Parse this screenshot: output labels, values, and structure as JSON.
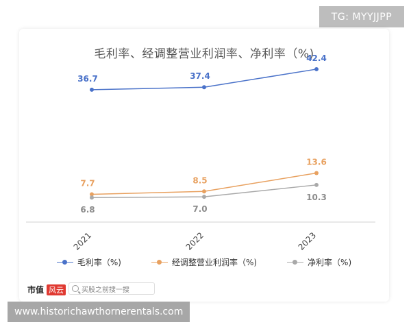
{
  "badge": "TG: MYYJJPP",
  "watermark": "www.historichawthornerentals.com",
  "footer": {
    "logo_text": "市值",
    "logo_flag": "风云",
    "search_placeholder": "买股之前搜一搜"
  },
  "chart_data": {
    "type": "line",
    "title": "毛利率、经调整营业利润率、净利率（%)",
    "categories": [
      "2021",
      "2022",
      "2023"
    ],
    "series": [
      {
        "name": "毛利率（%)",
        "values": [
          36.7,
          37.4,
          42.4
        ],
        "color": "#4a72c9"
      },
      {
        "name": "经调整营业利润率（%)",
        "values": [
          7.7,
          8.5,
          13.6
        ],
        "color": "#e8a160"
      },
      {
        "name": "净利率（%)",
        "values": [
          6.8,
          7.0,
          10.3
        ],
        "color": "#a9a9a9"
      }
    ],
    "ylim": [
      0,
      46
    ],
    "grid": false,
    "legend": "bottom"
  }
}
